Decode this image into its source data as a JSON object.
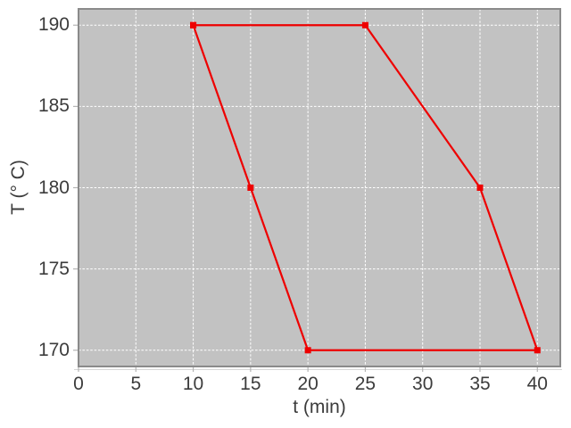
{
  "chart_data": {
    "type": "line",
    "x": [
      10,
      25,
      35,
      40,
      20,
      15,
      10
    ],
    "y": [
      190,
      190,
      180,
      170,
      170,
      180,
      190
    ],
    "title": "",
    "xlabel": "t (min)",
    "ylabel": "T (° C)",
    "xlim": [
      0,
      42
    ],
    "ylim": [
      169,
      191
    ],
    "xticks": [
      0,
      5,
      10,
      15,
      20,
      25,
      30,
      35,
      40
    ],
    "yticks": [
      170,
      175,
      180,
      185,
      190
    ],
    "grid": "dashed",
    "legend_position": "none",
    "line_color": "#ee0000",
    "marker": "filled-square",
    "plot_bg_color": "#c2c2c2",
    "grid_color": "#ffffff",
    "border_color": "#8a8a8a",
    "tick_color": "#b4b4b4",
    "text_color": "#3c3c3c"
  }
}
